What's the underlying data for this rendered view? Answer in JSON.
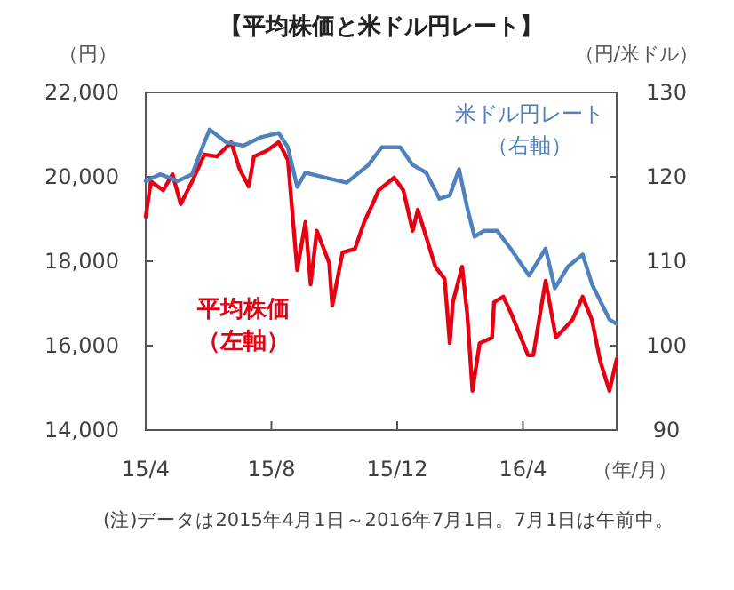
{
  "chart_data": {
    "type": "line",
    "title": "【平均株価と米ドル円レート】",
    "ylabel": "（円）",
    "y2label": "（円/米ドル）",
    "xlabel": "（年/月）",
    "xlim": [
      "2015-04-01",
      "2016-07-01"
    ],
    "xticks": [
      {
        "value": "2015-04-01",
        "label": "15/4"
      },
      {
        "value": "2015-08-01",
        "label": "15/8"
      },
      {
        "value": "2015-12-01",
        "label": "15/12"
      },
      {
        "value": "2016-04-01",
        "label": "16/4"
      }
    ],
    "ylim": [
      14000,
      22000
    ],
    "yticks": [
      {
        "value": 14000,
        "label": "14,000"
      },
      {
        "value": 16000,
        "label": "16,000"
      },
      {
        "value": 18000,
        "label": "18,000"
      },
      {
        "value": 20000,
        "label": "20,000"
      },
      {
        "value": 22000,
        "label": "22,000"
      }
    ],
    "y2lim": [
      90,
      130
    ],
    "y2ticks": [
      90,
      100,
      110,
      120,
      130
    ],
    "grid": false,
    "series": [
      {
        "name": "平均株価（左軸）",
        "color": "#e60012",
        "x": [
          "2015-04-01",
          "2015-04-06",
          "2015-04-18",
          "2015-04-27",
          "2015-05-05",
          "2015-05-16",
          "2015-05-28",
          "2015-06-09",
          "2015-06-23",
          "2015-07-01",
          "2015-07-10",
          "2015-07-15",
          "2015-07-27",
          "2015-08-08",
          "2015-08-17",
          "2015-08-26",
          "2015-09-03",
          "2015-09-08",
          "2015-09-14",
          "2015-09-26",
          "2015-09-29",
          "2015-10-09",
          "2015-10-21",
          "2015-10-30",
          "2015-11-08",
          "2015-11-13",
          "2015-11-28",
          "2015-12-07",
          "2015-12-16",
          "2015-12-21",
          "2016-01-07",
          "2016-01-16",
          "2016-01-21",
          "2016-01-24",
          "2016-02-02",
          "2016-02-07",
          "2016-02-12",
          "2016-02-19",
          "2016-03-02",
          "2016-03-04",
          "2016-03-13",
          "2016-03-21",
          "2016-04-06",
          "2016-04-11",
          "2016-04-23",
          "2016-05-03",
          "2016-05-19",
          "2016-05-29",
          "2016-06-07",
          "2016-06-15",
          "2016-06-24",
          "2016-07-01"
        ],
        "values": [
          19050,
          19890,
          19680,
          20060,
          19350,
          19890,
          20530,
          20480,
          20820,
          20190,
          19770,
          20480,
          20610,
          20820,
          20400,
          17790,
          18930,
          17450,
          18720,
          17960,
          16950,
          18210,
          18290,
          18930,
          19400,
          19680,
          19980,
          19680,
          18720,
          19220,
          17870,
          17580,
          16060,
          17030,
          17870,
          16740,
          14930,
          16060,
          16190,
          17030,
          17160,
          16740,
          15770,
          15770,
          17540,
          16190,
          16610,
          17160,
          16610,
          15640,
          14930,
          15680
        ]
      },
      {
        "name": "米ドル円レート（右軸）",
        "color": "#4f81bd",
        "axis": "y2",
        "x": [
          "2015-04-01",
          "2015-04-15",
          "2015-05-02",
          "2015-05-16",
          "2015-05-28",
          "2015-06-02",
          "2015-06-18",
          "2015-07-05",
          "2015-07-22",
          "2015-08-08",
          "2015-08-17",
          "2015-08-26",
          "2015-09-03",
          "2015-09-22",
          "2015-10-13",
          "2015-11-03",
          "2015-11-16",
          "2015-12-04",
          "2015-12-16",
          "2015-12-29",
          "2016-01-11",
          "2016-01-21",
          "2016-01-30",
          "2016-02-07",
          "2016-02-14",
          "2016-02-23",
          "2016-03-07",
          "2016-03-20",
          "2016-04-07",
          "2016-04-23",
          "2016-05-02",
          "2016-05-15",
          "2016-05-29",
          "2016-06-07",
          "2016-06-24",
          "2016-07-01"
        ],
        "values": [
          119.5,
          120.3,
          119.5,
          120.3,
          124.1,
          125.6,
          124.1,
          123.7,
          124.7,
          125.2,
          123.5,
          118.8,
          120.5,
          119.9,
          119.3,
          121.4,
          123.5,
          123.5,
          121.4,
          120.5,
          117.4,
          117.8,
          120.9,
          116.3,
          112.9,
          113.6,
          113.6,
          111.5,
          108.3,
          111.5,
          106.8,
          109.4,
          110.8,
          107.3,
          103.1,
          102.6
        ]
      }
    ],
    "annotations": [
      "(注)データは2015年4月1日～2016年7月1日。7月1日は午前中。"
    ]
  }
}
